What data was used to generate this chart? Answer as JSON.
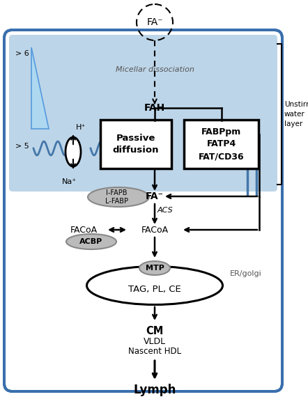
{
  "bg_color": "#ffffff",
  "cell_bg": "#ccdded",
  "cell_blue": "#3a6fad",
  "uwl_color": "#bdd5e8",
  "triangle_top": "#add8f0",
  "triangle_bot": "#5599dd",
  "wave_color": "#4477aa",
  "fa_label": "FA⁻",
  "micellar_label": "Micellar dissociation",
  "fah_label": "FAH",
  "passive_label": "Passive\ndiffusion",
  "fabp_label": "FABPpm\nFATP4\nFAT/CD36",
  "ifabp_label": "I-FAPB\nL-FABP",
  "fa_inner_label": "FA⁻",
  "acs_label": "ACS",
  "facoa1_label": "FACoA",
  "facoa2_label": "FACoA",
  "acbp_label": "ACBP",
  "mtp_label": "MTP",
  "er_label": "ER/golgi",
  "tag_label": "TAG, PL, CE",
  "cm_label": "CM",
  "vldl_label": "VLDL",
  "hdl_label": "Nascent HDL",
  "lymph_label": "Lymph",
  "ph_gt6": "> 6",
  "ph_gt5": "> 5",
  "hplus": "H⁺",
  "naplus": "Na⁺",
  "unstirred_label": "Unstirred\nwater\nlayer"
}
